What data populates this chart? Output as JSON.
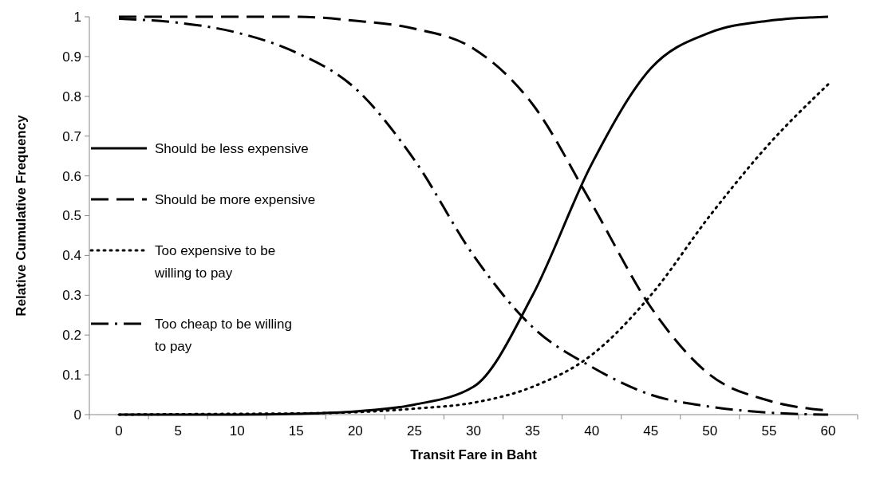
{
  "chart_data": {
    "type": "line",
    "xlabel": "Transit Fare in Baht",
    "ylabel": "Relative Cumulative Frequency",
    "categories": [
      "0",
      "5",
      "10",
      "15",
      "20",
      "25",
      "30",
      "35",
      "40",
      "45",
      "50",
      "55",
      "60"
    ],
    "ylim": [
      0,
      1
    ],
    "yticks": [
      0,
      0.1,
      0.2,
      0.3,
      0.4,
      0.5,
      0.6,
      0.7,
      0.8,
      0.9,
      1
    ],
    "grid": false,
    "legend": "left",
    "marker": "none",
    "series": [
      {
        "name": "Should be less expensive",
        "color": "#000000",
        "line_style": "solid",
        "values": [
          0,
          0,
          0,
          0.002,
          0.008,
          0.025,
          0.07,
          0.3,
          0.63,
          0.87,
          0.96,
          0.99,
          1
        ]
      },
      {
        "name": "Should be more expensive",
        "color": "#000000",
        "line_style": "dashed",
        "values": [
          1,
          1,
          1,
          1,
          0.99,
          0.97,
          0.92,
          0.78,
          0.53,
          0.27,
          0.1,
          0.035,
          0.01
        ]
      },
      {
        "name": "Too expensive to be willing to pay",
        "color": "#000000",
        "line_style": "dotted",
        "values": [
          0,
          0.001,
          0.002,
          0.003,
          0.006,
          0.015,
          0.03,
          0.07,
          0.15,
          0.3,
          0.5,
          0.68,
          0.83
        ]
      },
      {
        "name": "Too cheap to be willing to pay",
        "color": "#000000",
        "line_style": "dashdot",
        "values": [
          0.995,
          0.985,
          0.96,
          0.91,
          0.82,
          0.64,
          0.4,
          0.22,
          0.12,
          0.05,
          0.02,
          0.005,
          0
        ]
      }
    ]
  }
}
